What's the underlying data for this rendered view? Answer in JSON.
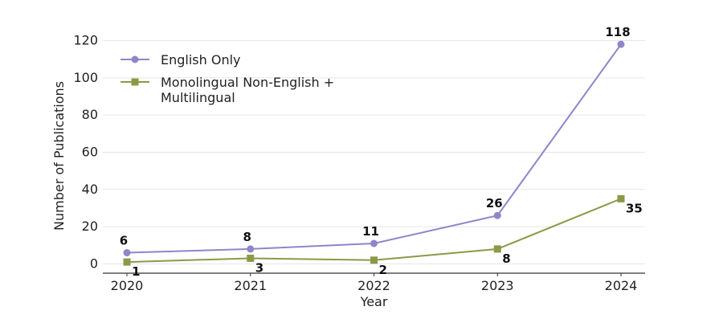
{
  "chart_data": {
    "type": "line",
    "xlabel": "Year",
    "ylabel": "Number of Publications",
    "categories": [
      "2020",
      "2021",
      "2022",
      "2023",
      "2024"
    ],
    "ylim": [
      -5,
      128
    ],
    "yticks": [
      0,
      20,
      40,
      60,
      80,
      100,
      120
    ],
    "grid": "horizontal",
    "legend_position": "top-left",
    "series": [
      {
        "name": "English Only",
        "values": [
          6,
          8,
          11,
          26,
          118
        ],
        "color": "#8e86c9",
        "marker": "circle",
        "label_position": "above"
      },
      {
        "name_lines": [
          "Monolingual Non-English +",
          "Multilingual"
        ],
        "values": [
          1,
          3,
          2,
          8,
          35
        ],
        "color": "#8a9a48",
        "marker": "square",
        "label_position": "below-right"
      }
    ]
  }
}
